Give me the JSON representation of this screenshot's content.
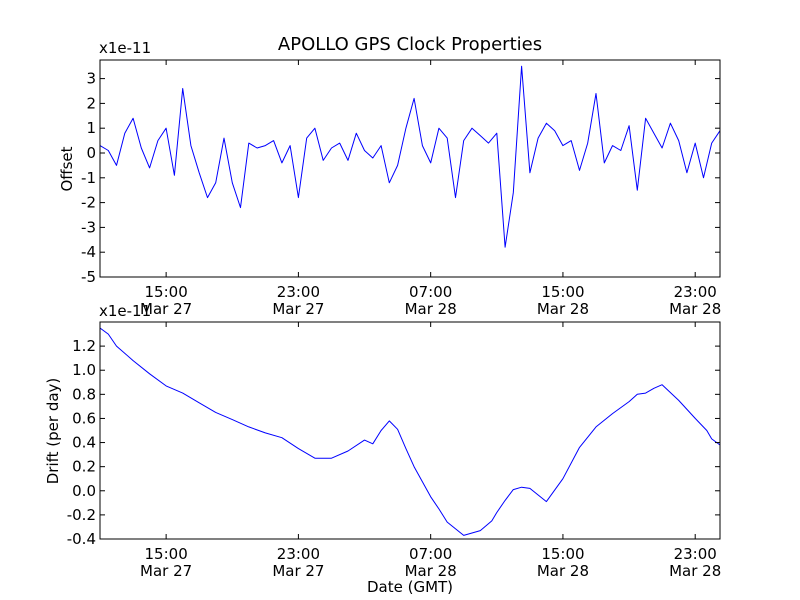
{
  "chart_data": [
    {
      "type": "line",
      "title": "APOLLO GPS Clock Properties",
      "ylabel": "Offset",
      "xlabel": "",
      "scale_label": "x1e-11",
      "ylim": [
        -5,
        3.75
      ],
      "xlim": [
        11.0,
        48.5
      ],
      "yticks": [
        3,
        2,
        1,
        0,
        -1,
        -2,
        -3,
        -4,
        -5
      ],
      "ytick_labels": [
        "3",
        "2",
        "1",
        "0",
        "-1",
        "-2",
        "-3",
        "-4",
        "-5"
      ],
      "xticks": [
        15,
        23,
        31,
        39,
        47
      ],
      "xtick_time_labels": [
        "15:00",
        "23:00",
        "07:00",
        "15:00",
        "23:00"
      ],
      "xtick_date_labels": [
        "Mar 27",
        "Mar 27",
        "Mar 28",
        "Mar 28",
        "Mar 28"
      ],
      "line_color": "#0000ff",
      "series": [
        {
          "name": "Offset",
          "x": [
            11.0,
            11.5,
            12.0,
            12.5,
            13.0,
            13.5,
            14.0,
            14.5,
            15.0,
            15.5,
            16.0,
            16.5,
            17.0,
            17.5,
            18.0,
            18.5,
            19.0,
            19.5,
            20.0,
            20.5,
            21.0,
            21.5,
            22.0,
            22.5,
            23.0,
            23.5,
            24.0,
            24.5,
            25.0,
            25.5,
            26.0,
            26.5,
            27.0,
            27.5,
            28.0,
            28.5,
            29.0,
            29.5,
            30.0,
            30.5,
            31.0,
            31.5,
            32.0,
            32.5,
            33.0,
            33.5,
            34.0,
            34.5,
            35.0,
            35.5,
            36.0,
            36.5,
            37.0,
            37.5,
            38.0,
            38.5,
            39.0,
            39.5,
            40.0,
            40.5,
            41.0,
            41.5,
            42.0,
            42.5,
            43.0,
            43.5,
            44.0,
            44.5,
            45.0,
            45.5,
            46.0,
            46.5,
            47.0,
            47.5,
            48.0,
            48.5
          ],
          "values": [
            0.3,
            0.1,
            -0.5,
            0.8,
            1.4,
            0.2,
            -0.6,
            0.5,
            1.0,
            -0.9,
            2.6,
            0.3,
            -0.8,
            -1.8,
            -1.2,
            0.6,
            -1.2,
            -2.2,
            0.4,
            0.2,
            0.3,
            0.5,
            -0.4,
            0.3,
            -1.8,
            0.6,
            1.0,
            -0.3,
            0.2,
            0.4,
            -0.3,
            0.8,
            0.1,
            -0.2,
            0.3,
            -1.2,
            -0.5,
            1.0,
            2.2,
            0.3,
            -0.4,
            1.0,
            0.6,
            -1.8,
            0.5,
            1.0,
            0.7,
            0.4,
            0.8,
            -3.8,
            -1.6,
            3.5,
            -0.8,
            0.6,
            1.2,
            0.9,
            0.3,
            0.5,
            -0.7,
            0.4,
            2.4,
            -0.4,
            0.3,
            0.1,
            1.1,
            -1.5,
            1.4,
            0.8,
            0.2,
            1.2,
            0.5,
            -0.8,
            0.4,
            -1.0,
            0.4,
            0.9
          ]
        }
      ]
    },
    {
      "type": "line",
      "title": "",
      "ylabel": "Drift (per day)",
      "xlabel": "Date (GMT)",
      "scale_label": "x1e-11",
      "ylim": [
        -0.4,
        1.4
      ],
      "xlim": [
        11.0,
        48.5
      ],
      "yticks": [
        1.2,
        1.0,
        0.8,
        0.6,
        0.4,
        0.2,
        0.0,
        -0.2,
        -0.4
      ],
      "ytick_labels": [
        "1.2",
        "1.0",
        "0.8",
        "0.6",
        "0.4",
        "0.2",
        "0.0",
        "-0.2",
        "-0.4"
      ],
      "xticks": [
        15,
        23,
        31,
        39,
        47
      ],
      "xtick_time_labels": [
        "15:00",
        "23:00",
        "07:00",
        "15:00",
        "23:00"
      ],
      "xtick_date_labels": [
        "Mar 27",
        "Mar 27",
        "Mar 28",
        "Mar 28",
        "Mar 28"
      ],
      "line_color": "#0000ff",
      "series": [
        {
          "name": "Drift",
          "x": [
            11.0,
            11.5,
            12.0,
            13.0,
            14.0,
            15.0,
            16.0,
            17.0,
            18.0,
            19.0,
            20.0,
            21.0,
            22.0,
            23.0,
            24.0,
            25.0,
            26.0,
            27.0,
            27.5,
            28.0,
            28.5,
            29.0,
            29.5,
            30.0,
            31.0,
            31.5,
            32.0,
            33.0,
            34.0,
            34.7,
            35.0,
            35.5,
            36.0,
            36.5,
            37.0,
            38.0,
            39.0,
            40.0,
            41.0,
            42.0,
            43.0,
            43.5,
            44.0,
            44.5,
            45.0,
            46.0,
            47.0,
            47.7,
            48.0,
            48.5
          ],
          "values": [
            1.35,
            1.3,
            1.2,
            1.08,
            0.97,
            0.87,
            0.81,
            0.73,
            0.65,
            0.59,
            0.53,
            0.48,
            0.44,
            0.35,
            0.27,
            0.27,
            0.33,
            0.42,
            0.39,
            0.5,
            0.58,
            0.51,
            0.35,
            0.2,
            -0.05,
            -0.15,
            -0.26,
            -0.37,
            -0.33,
            -0.25,
            -0.18,
            -0.08,
            0.01,
            0.03,
            0.02,
            -0.09,
            0.1,
            0.36,
            0.53,
            0.64,
            0.74,
            0.8,
            0.81,
            0.85,
            0.88,
            0.75,
            0.6,
            0.5,
            0.43,
            0.38
          ]
        }
      ]
    }
  ]
}
